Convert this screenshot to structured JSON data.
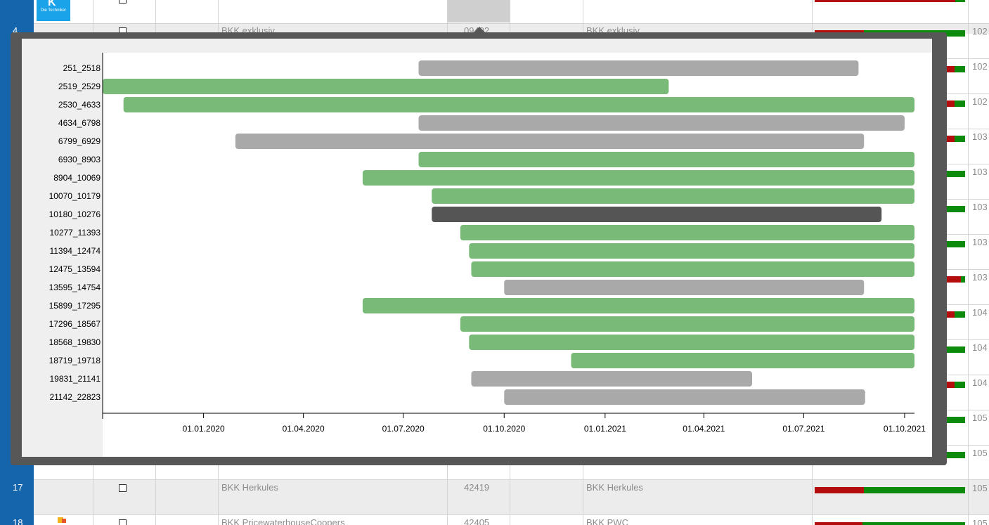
{
  "spreadsheet": {
    "rows": [
      {
        "num": "4",
        "name": "BKK exklusiv",
        "code": "09402",
        "short": "BKK exklusiv",
        "right": "102",
        "red": 0.31,
        "green": 0.69
      },
      {
        "num": "17",
        "name": "BKK Herkules",
        "code": "42419",
        "short": "BKK Herkules",
        "right": "105",
        "red": 0.33,
        "green": 0.67
      },
      {
        "num": "18",
        "name": "BKK PricewaterhouseCoopers",
        "code": "42405",
        "short": "BKK PWC",
        "right": "105",
        "red": 0.32,
        "green": 0.68
      }
    ],
    "right_numbers": [
      "102",
      "102",
      "103",
      "103",
      "103",
      "103",
      "103",
      "104",
      "104",
      "104",
      "105",
      "105"
    ],
    "logo_tk": "Die Techniker"
  },
  "chart_data": {
    "type": "gantt",
    "x_start": "2019-10-01",
    "x_end": "2021-10-10",
    "tick_labels": [
      "01.01.2020",
      "01.04.2020",
      "01.07.2020",
      "01.10.2020",
      "01.01.2021",
      "01.04.2021",
      "01.07.2021",
      "01.10.2021"
    ],
    "tick_dates": [
      "2020-01-01",
      "2020-04-01",
      "2020-07-01",
      "2020-10-01",
      "2021-01-01",
      "2021-04-01",
      "2021-07-01",
      "2021-10-01"
    ],
    "colors": {
      "green": "#7aba78",
      "gray": "#a9a9a9",
      "dark": "#555555"
    },
    "series": [
      {
        "name": "251_2518",
        "start": "2020-07-15",
        "end": "2021-08-20",
        "color": "gray"
      },
      {
        "name": "2519_2529",
        "start": "2019-10-01",
        "end": "2021-02-28",
        "color": "green"
      },
      {
        "name": "2530_4633",
        "start": "2019-10-20",
        "end": "2021-10-10",
        "color": "green"
      },
      {
        "name": "4634_6798",
        "start": "2020-07-15",
        "end": "2021-10-01",
        "color": "gray"
      },
      {
        "name": "6799_6929",
        "start": "2020-01-30",
        "end": "2021-08-25",
        "color": "gray"
      },
      {
        "name": "6930_8903",
        "start": "2020-07-15",
        "end": "2021-10-10",
        "color": "green"
      },
      {
        "name": "8904_10069",
        "start": "2020-05-25",
        "end": "2021-10-10",
        "color": "green"
      },
      {
        "name": "10070_10179",
        "start": "2020-07-27",
        "end": "2021-10-10",
        "color": "green"
      },
      {
        "name": "10180_10276",
        "start": "2020-07-27",
        "end": "2021-09-10",
        "color": "dark"
      },
      {
        "name": "10277_11393",
        "start": "2020-08-22",
        "end": "2021-10-10",
        "color": "green"
      },
      {
        "name": "11394_12474",
        "start": "2020-08-30",
        "end": "2021-10-10",
        "color": "green"
      },
      {
        "name": "12475_13594",
        "start": "2020-09-01",
        "end": "2021-10-10",
        "color": "green"
      },
      {
        "name": "13595_14754",
        "start": "2020-10-01",
        "end": "2021-08-25",
        "color": "gray"
      },
      {
        "name": "15899_17295",
        "start": "2020-05-25",
        "end": "2021-10-10",
        "color": "green"
      },
      {
        "name": "17296_18567",
        "start": "2020-08-22",
        "end": "2021-10-10",
        "color": "green"
      },
      {
        "name": "18568_19830",
        "start": "2020-08-30",
        "end": "2021-10-10",
        "color": "green"
      },
      {
        "name": "18719_19718",
        "start": "2020-12-01",
        "end": "2021-10-10",
        "color": "green"
      },
      {
        "name": "19831_21141",
        "start": "2020-09-01",
        "end": "2021-05-15",
        "color": "gray"
      },
      {
        "name": "21142_22823",
        "start": "2020-10-01",
        "end": "2021-08-26",
        "color": "gray"
      }
    ]
  }
}
